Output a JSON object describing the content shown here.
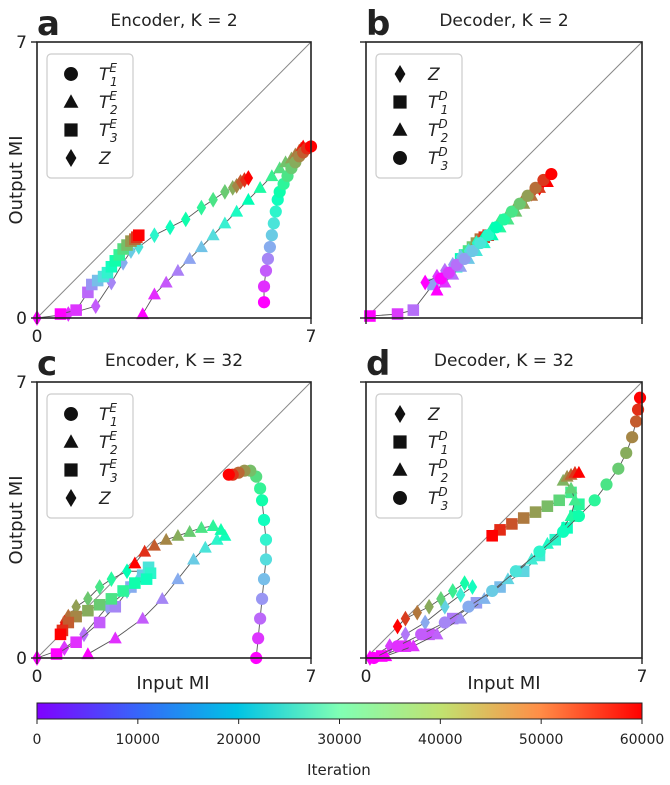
{
  "figure": {
    "y_axis_label": "Output MI",
    "x_axis_label": "Input MI",
    "colorbar": {
      "label": "Iteration",
      "ticks": [
        "0",
        "10000",
        "20000",
        "30000",
        "40000",
        "50000",
        "60000"
      ],
      "range": [
        0,
        60000
      ],
      "colormap": "rainbow"
    },
    "colors": {
      "line": "#555555",
      "diagonal": "#888888",
      "axis": "#222222",
      "legend_border": "#cccccc"
    }
  },
  "chart_data": [
    {
      "type": "scatter",
      "panel_letter": "a",
      "title": "Encoder, K = 2",
      "xlim": [
        0,
        7
      ],
      "ylim": [
        0,
        7
      ],
      "x_ticks": [
        "0",
        "7"
      ],
      "y_ticks": [
        "0",
        "7"
      ],
      "diagonal": true,
      "legend": [
        {
          "marker": "circle",
          "label_base": "T",
          "label_sub": "1",
          "label_sup": "E"
        },
        {
          "marker": "triangle",
          "label_base": "T",
          "label_sub": "2",
          "label_sup": "E"
        },
        {
          "marker": "square",
          "label_base": "T",
          "label_sub": "3",
          "label_sup": "E"
        },
        {
          "marker": "diamond",
          "label_base": "Z",
          "label_sub": "",
          "label_sup": ""
        }
      ],
      "series": [
        {
          "marker": "diamond",
          "x": [
            0.0,
            0.8,
            1.5,
            1.9,
            2.2,
            2.4,
            2.6,
            3.0,
            3.4,
            3.8,
            4.2,
            4.5,
            4.8,
            5.0,
            5.1,
            5.2,
            5.3,
            5.4
          ],
          "y": [
            0.0,
            0.1,
            0.3,
            0.9,
            1.4,
            1.7,
            1.8,
            2.1,
            2.3,
            2.5,
            2.8,
            3.0,
            3.2,
            3.3,
            3.35,
            3.45,
            3.5,
            3.55
          ]
        },
        {
          "marker": "square",
          "x": [
            0.6,
            1.0,
            1.3,
            1.4,
            1.55,
            1.7,
            1.8,
            1.9,
            2.0,
            2.1,
            2.2,
            2.3,
            2.4,
            2.5,
            2.55,
            2.6
          ],
          "y": [
            0.1,
            0.2,
            0.65,
            0.85,
            0.95,
            1.05,
            1.15,
            1.3,
            1.45,
            1.6,
            1.75,
            1.85,
            1.95,
            2.0,
            2.05,
            2.1
          ]
        },
        {
          "marker": "triangle",
          "x": [
            2.7,
            3.0,
            3.3,
            3.6,
            3.9,
            4.2,
            4.5,
            4.8,
            5.1,
            5.4,
            5.7,
            6.0,
            6.2,
            6.35,
            6.5,
            6.6,
            6.7,
            6.75,
            6.8
          ],
          "y": [
            0.1,
            0.6,
            0.9,
            1.2,
            1.5,
            1.8,
            2.1,
            2.4,
            2.7,
            3.0,
            3.3,
            3.6,
            3.8,
            3.95,
            4.05,
            4.15,
            4.25,
            4.3,
            4.35
          ]
        },
        {
          "marker": "circle",
          "x": [
            5.8,
            5.8,
            5.85,
            5.9,
            5.95,
            6.0,
            6.05,
            6.1,
            6.15,
            6.2,
            6.3,
            6.4,
            6.5,
            6.6,
            6.7,
            6.8,
            6.9,
            7.0
          ],
          "y": [
            0.4,
            0.8,
            1.2,
            1.5,
            1.8,
            2.1,
            2.4,
            2.7,
            3.0,
            3.2,
            3.4,
            3.6,
            3.8,
            3.95,
            4.1,
            4.2,
            4.3,
            4.35
          ]
        }
      ]
    },
    {
      "type": "scatter",
      "panel_letter": "b",
      "title": "Decoder, K = 2",
      "xlim": [
        0,
        7
      ],
      "ylim": [
        0,
        7
      ],
      "x_ticks": [],
      "y_ticks": [],
      "diagonal": true,
      "legend": [
        {
          "marker": "diamond",
          "label_base": "Z",
          "label_sub": "",
          "label_sup": ""
        },
        {
          "marker": "square",
          "label_base": "T",
          "label_sub": "1",
          "label_sup": "D"
        },
        {
          "marker": "triangle",
          "label_base": "T",
          "label_sub": "2",
          "label_sup": "D"
        },
        {
          "marker": "circle",
          "label_base": "T",
          "label_sub": "3",
          "label_sup": "D"
        }
      ],
      "series": [
        {
          "marker": "square",
          "x": [
            0.1,
            0.8,
            1.2,
            1.7,
            1.9,
            2.1,
            2.3,
            2.4,
            2.5,
            2.6,
            2.7,
            2.8,
            2.9,
            3.0,
            3.1
          ],
          "y": [
            0.05,
            0.1,
            0.2,
            0.85,
            1.0,
            1.15,
            1.3,
            1.5,
            1.6,
            1.7,
            1.8,
            1.9,
            2.0,
            2.05,
            2.1
          ]
        },
        {
          "marker": "diamond",
          "x": [
            1.5,
            1.8,
            2.0,
            2.2,
            2.4,
            2.6,
            2.8,
            3.0,
            3.2,
            3.4,
            3.6,
            3.8,
            4.0,
            4.2,
            4.4
          ],
          "y": [
            0.9,
            1.05,
            1.2,
            1.35,
            1.55,
            1.7,
            1.9,
            2.05,
            2.25,
            2.45,
            2.6,
            2.8,
            3.0,
            3.15,
            3.3
          ]
        },
        {
          "marker": "triangle",
          "x": [
            1.8,
            2.0,
            2.2,
            2.4,
            2.6,
            2.8,
            3.0,
            3.2,
            3.4,
            3.6,
            3.8,
            4.0,
            4.2,
            4.4,
            4.6
          ],
          "y": [
            0.7,
            0.9,
            1.1,
            1.3,
            1.5,
            1.7,
            1.9,
            2.1,
            2.3,
            2.5,
            2.7,
            2.9,
            3.1,
            3.3,
            3.45
          ]
        },
        {
          "marker": "circle",
          "x": [
            1.9,
            2.1,
            2.3,
            2.5,
            2.7,
            2.9,
            3.1,
            3.3,
            3.5,
            3.7,
            3.9,
            4.1,
            4.3,
            4.5,
            4.7
          ],
          "y": [
            1.0,
            1.15,
            1.35,
            1.5,
            1.7,
            1.9,
            2.1,
            2.3,
            2.5,
            2.7,
            2.9,
            3.1,
            3.3,
            3.5,
            3.65
          ]
        }
      ]
    },
    {
      "type": "scatter",
      "panel_letter": "c",
      "title": "Encoder, K = 32",
      "xlim": [
        0,
        7
      ],
      "ylim": [
        0,
        7
      ],
      "x_ticks": [
        "0",
        "7"
      ],
      "y_ticks": [
        "0",
        "7"
      ],
      "diagonal": true,
      "legend": [
        {
          "marker": "circle",
          "label_base": "T",
          "label_sub": "1",
          "label_sup": "E"
        },
        {
          "marker": "triangle",
          "label_base": "T",
          "label_sub": "2",
          "label_sup": "E"
        },
        {
          "marker": "square",
          "label_base": "T",
          "label_sub": "3",
          "label_sup": "E"
        },
        {
          "marker": "diamond",
          "label_base": "Z",
          "label_sub": "",
          "label_sup": ""
        }
      ],
      "series": [
        {
          "marker": "diamond",
          "x": [
            0.0,
            0.7,
            1.2,
            1.8,
            2.3,
            2.6,
            2.8,
            2.3,
            1.9,
            1.6,
            1.3,
            1.0,
            0.8,
            0.7,
            0.65
          ],
          "y": [
            0.0,
            0.25,
            0.6,
            1.3,
            1.7,
            2.0,
            2.2,
            2.2,
            2.0,
            1.8,
            1.5,
            1.3,
            1.05,
            0.9,
            0.75
          ]
        },
        {
          "marker": "square",
          "x": [
            0.5,
            1.0,
            1.6,
            2.0,
            2.4,
            2.7,
            2.85,
            2.9,
            2.8,
            2.5,
            2.2,
            1.9,
            1.6,
            1.3,
            1.0,
            0.8,
            0.65,
            0.6
          ],
          "y": [
            0.1,
            0.4,
            0.9,
            1.3,
            1.8,
            2.1,
            2.3,
            2.15,
            2.0,
            1.9,
            1.7,
            1.5,
            1.35,
            1.2,
            1.05,
            0.9,
            0.7,
            0.6
          ]
        },
        {
          "marker": "triangle",
          "x": [
            1.3,
            2.0,
            2.7,
            3.2,
            3.6,
            4.0,
            4.3,
            4.6,
            4.8,
            4.7,
            4.5,
            4.2,
            3.9,
            3.6,
            3.3,
            3.0,
            2.75,
            2.5
          ],
          "y": [
            0.1,
            0.5,
            1.0,
            1.5,
            2.0,
            2.5,
            2.8,
            3.0,
            3.1,
            3.25,
            3.35,
            3.3,
            3.2,
            3.1,
            3.0,
            2.85,
            2.7,
            2.4
          ]
        },
        {
          "marker": "circle",
          "x": [
            5.6,
            5.65,
            5.7,
            5.75,
            5.8,
            5.85,
            5.85,
            5.8,
            5.75,
            5.7,
            5.6,
            5.45,
            5.3,
            5.15,
            5.0,
            4.9
          ],
          "y": [
            0.0,
            0.5,
            1.0,
            1.5,
            2.0,
            2.5,
            3.0,
            3.5,
            4.0,
            4.3,
            4.6,
            4.75,
            4.75,
            4.7,
            4.65,
            4.65
          ]
        }
      ]
    },
    {
      "type": "scatter",
      "panel_letter": "d",
      "title": "Decoder, K = 32",
      "xlim": [
        0,
        7
      ],
      "ylim": [
        0,
        7
      ],
      "x_ticks": [
        "0",
        "7"
      ],
      "y_ticks": [],
      "diagonal": true,
      "legend": [
        {
          "marker": "diamond",
          "label_base": "Z",
          "label_sub": "",
          "label_sup": ""
        },
        {
          "marker": "square",
          "label_base": "T",
          "label_sub": "1",
          "label_sup": "D"
        },
        {
          "marker": "triangle",
          "label_base": "T",
          "label_sub": "2",
          "label_sup": "D"
        },
        {
          "marker": "circle",
          "label_base": "T",
          "label_sub": "3",
          "label_sup": "D"
        }
      ],
      "series": [
        {
          "marker": "diamond",
          "x": [
            0.1,
            0.6,
            1.0,
            1.5,
            2.0,
            2.4,
            2.7,
            2.5,
            2.2,
            1.9,
            1.6,
            1.3,
            1.0,
            0.8
          ],
          "y": [
            0.0,
            0.3,
            0.6,
            0.9,
            1.3,
            1.6,
            1.8,
            1.9,
            1.7,
            1.5,
            1.3,
            1.15,
            1.0,
            0.8
          ]
        },
        {
          "marker": "square",
          "x": [
            0.4,
            1.0,
            1.6,
            2.2,
            2.8,
            3.4,
            4.0,
            4.4,
            4.8,
            5.1,
            5.3,
            5.4,
            5.2,
            4.9,
            4.6,
            4.3,
            4.0,
            3.7,
            3.4,
            3.2
          ],
          "y": [
            0.05,
            0.3,
            0.6,
            1.0,
            1.4,
            1.8,
            2.2,
            2.6,
            3.0,
            3.3,
            3.6,
            3.9,
            4.2,
            4.0,
            3.85,
            3.7,
            3.55,
            3.4,
            3.25,
            3.1
          ]
        },
        {
          "marker": "triangle",
          "x": [
            0.5,
            1.2,
            1.8,
            2.4,
            3.0,
            3.6,
            4.2,
            4.6,
            5.0,
            5.2,
            5.3,
            5.2,
            5.0,
            5.1,
            5.2,
            5.3,
            5.4
          ],
          "y": [
            0.05,
            0.3,
            0.6,
            1.0,
            1.5,
            2.0,
            2.5,
            2.9,
            3.3,
            3.6,
            4.0,
            4.3,
            4.5,
            4.6,
            4.65,
            4.7,
            4.7
          ]
        },
        {
          "marker": "circle",
          "x": [
            0.2,
            0.8,
            1.4,
            2.0,
            2.6,
            3.2,
            3.8,
            4.4,
            5.0,
            5.4,
            5.8,
            6.1,
            6.4,
            6.6,
            6.75,
            6.85,
            6.9,
            6.95
          ],
          "y": [
            0.0,
            0.3,
            0.6,
            0.9,
            1.3,
            1.7,
            2.2,
            2.7,
            3.2,
            3.6,
            4.0,
            4.4,
            4.8,
            5.2,
            5.6,
            6.0,
            6.3,
            6.6
          ]
        }
      ]
    }
  ]
}
